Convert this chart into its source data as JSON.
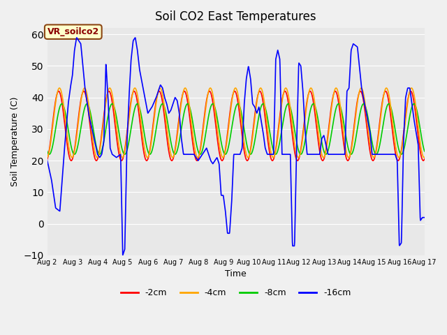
{
  "title": "Soil CO2 East Temperatures",
  "xlabel": "Time",
  "ylabel": "Soil Temperature (C)",
  "ylim": [
    -10,
    62
  ],
  "xlim": [
    0,
    360
  ],
  "annotation": "VR_soilco2",
  "legend_labels": [
    "-2cm",
    "-4cm",
    "-8cm",
    "-16cm"
  ],
  "legend_colors": [
    "#ff0000",
    "#ffa500",
    "#00cc00",
    "#0000ff"
  ],
  "x_tick_labels": [
    "Aug 2",
    "Aug 3",
    "Aug 4",
    "Aug 5",
    "Aug 6",
    "Aug 7",
    "Aug 8",
    "Aug 9",
    "Aug 10",
    "Aug 11",
    "Aug 12",
    "Aug 13",
    "Aug 14",
    "Aug 15",
    "Aug 16",
    "Aug 17"
  ],
  "background_color": "#e8e8e8",
  "plot_bg_color": "#e8e8e8"
}
